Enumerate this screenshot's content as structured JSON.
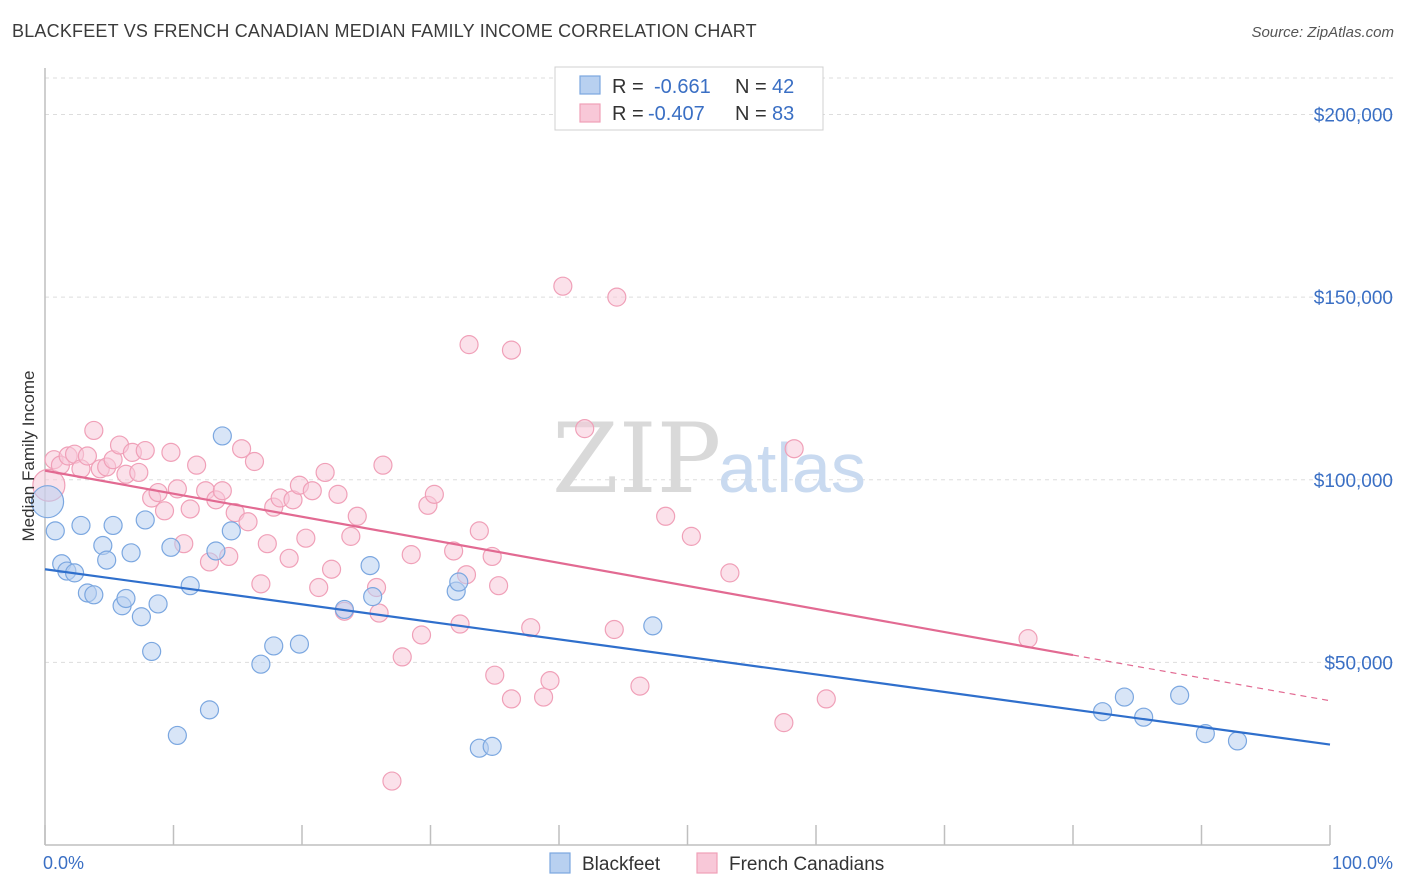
{
  "chart_data": {
    "type": "scatter",
    "title": "BLACKFEET VS FRENCH CANADIAN MEDIAN FAMILY INCOME CORRELATION CHART",
    "source": "Source: ZipAtlas.com",
    "xlabel": "",
    "ylabel": "Median Family Income",
    "xlim": [
      0,
      100
    ],
    "ylim": [
      0,
      210000
    ],
    "x_tick_labels": [
      "0.0%",
      "100.0%"
    ],
    "y_ticks": [
      {
        "value": 50000,
        "label": "$50,000"
      },
      {
        "value": 100000,
        "label": "$100,000"
      },
      {
        "value": 150000,
        "label": "$150,000"
      },
      {
        "value": 200000,
        "label": "$200,000"
      }
    ],
    "watermark": {
      "zip": "ZIP",
      "atlas": "atlas"
    },
    "legend": {
      "r_label": "R =",
      "n_label": "N =",
      "entries": [
        {
          "name": "Blackfeet",
          "r": "-0.661",
          "n": "42"
        },
        {
          "name": "French Canadians",
          "r": "-0.407",
          "n": "83"
        }
      ]
    },
    "series": [
      {
        "name": "Blackfeet",
        "color": "#7ba7e0",
        "fill": "#b8d0f0",
        "line_color": "#2f6fcc",
        "trend": {
          "x": [
            0,
            100
          ],
          "y": [
            75500,
            27500
          ]
        },
        "points": [
          [
            0.2,
            94000
          ],
          [
            0.8,
            86000
          ],
          [
            1.3,
            77000
          ],
          [
            1.7,
            75000
          ],
          [
            2.3,
            74500
          ],
          [
            2.8,
            87500
          ],
          [
            3.3,
            69000
          ],
          [
            3.8,
            68500
          ],
          [
            4.5,
            82000
          ],
          [
            4.8,
            78000
          ],
          [
            5.3,
            87500
          ],
          [
            6.0,
            65500
          ],
          [
            6.3,
            67500
          ],
          [
            6.7,
            80000
          ],
          [
            7.5,
            62500
          ],
          [
            7.8,
            89000
          ],
          [
            8.3,
            53000
          ],
          [
            8.8,
            66000
          ],
          [
            9.8,
            81500
          ],
          [
            10.3,
            30000
          ],
          [
            11.3,
            71000
          ],
          [
            12.8,
            37000
          ],
          [
            13.3,
            80500
          ],
          [
            13.8,
            112000
          ],
          [
            14.5,
            86000
          ],
          [
            16.8,
            49500
          ],
          [
            17.8,
            54500
          ],
          [
            19.8,
            55000
          ],
          [
            23.3,
            64500
          ],
          [
            25.3,
            76500
          ],
          [
            25.5,
            68000
          ],
          [
            32.0,
            69500
          ],
          [
            32.2,
            72000
          ],
          [
            33.8,
            26500
          ],
          [
            34.8,
            27000
          ],
          [
            47.3,
            60000
          ],
          [
            82.3,
            36500
          ],
          [
            84.0,
            40500
          ],
          [
            85.5,
            35000
          ],
          [
            88.3,
            41000
          ],
          [
            90.3,
            30500
          ],
          [
            92.8,
            28500
          ]
        ]
      },
      {
        "name": "French Canadians",
        "color": "#f0a0b8",
        "fill": "#f8c8d8",
        "line_color": "#e26a92",
        "trend": {
          "x": [
            0,
            80
          ],
          "y": [
            102500,
            52000
          ]
        },
        "trend_dashed": {
          "x": [
            80,
            100
          ],
          "y": [
            52000,
            39500
          ]
        },
        "points": [
          [
            0.3,
            98500
          ],
          [
            0.7,
            105500
          ],
          [
            1.2,
            104000
          ],
          [
            1.8,
            106500
          ],
          [
            2.3,
            107000
          ],
          [
            2.8,
            103000
          ],
          [
            3.3,
            106500
          ],
          [
            3.8,
            113500
          ],
          [
            4.3,
            103000
          ],
          [
            4.8,
            103500
          ],
          [
            5.3,
            105500
          ],
          [
            5.8,
            109500
          ],
          [
            6.3,
            101500
          ],
          [
            6.8,
            107500
          ],
          [
            7.3,
            102000
          ],
          [
            7.8,
            108000
          ],
          [
            8.3,
            95000
          ],
          [
            8.8,
            96500
          ],
          [
            9.3,
            91500
          ],
          [
            9.8,
            107500
          ],
          [
            10.3,
            97500
          ],
          [
            10.8,
            82500
          ],
          [
            11.3,
            92000
          ],
          [
            11.8,
            104000
          ],
          [
            12.5,
            97000
          ],
          [
            12.8,
            77500
          ],
          [
            13.3,
            94500
          ],
          [
            13.8,
            97000
          ],
          [
            14.3,
            79000
          ],
          [
            14.8,
            91000
          ],
          [
            15.3,
            108500
          ],
          [
            15.8,
            88500
          ],
          [
            16.3,
            105000
          ],
          [
            16.8,
            71500
          ],
          [
            17.3,
            82500
          ],
          [
            17.8,
            92500
          ],
          [
            18.3,
            95000
          ],
          [
            19.0,
            78500
          ],
          [
            19.3,
            94500
          ],
          [
            19.8,
            98500
          ],
          [
            20.3,
            84000
          ],
          [
            20.8,
            97000
          ],
          [
            21.3,
            70500
          ],
          [
            21.8,
            102000
          ],
          [
            22.3,
            75500
          ],
          [
            22.8,
            96000
          ],
          [
            23.3,
            64000
          ],
          [
            23.8,
            84500
          ],
          [
            24.3,
            90000
          ],
          [
            25.8,
            70500
          ],
          [
            26.0,
            63500
          ],
          [
            26.3,
            104000
          ],
          [
            27.8,
            51500
          ],
          [
            28.5,
            79500
          ],
          [
            29.3,
            57500
          ],
          [
            29.8,
            93000
          ],
          [
            30.3,
            96000
          ],
          [
            31.8,
            80500
          ],
          [
            32.3,
            60500
          ],
          [
            32.8,
            74000
          ],
          [
            33.0,
            137000
          ],
          [
            33.8,
            86000
          ],
          [
            34.8,
            79000
          ],
          [
            35.0,
            46500
          ],
          [
            35.3,
            71000
          ],
          [
            36.3,
            135500
          ],
          [
            36.3,
            40000
          ],
          [
            37.8,
            59500
          ],
          [
            38.8,
            40500
          ],
          [
            39.3,
            45000
          ],
          [
            40.3,
            153000
          ],
          [
            42.0,
            114000
          ],
          [
            44.3,
            59000
          ],
          [
            44.5,
            150000
          ],
          [
            46.3,
            43500
          ],
          [
            48.3,
            90000
          ],
          [
            50.3,
            84500
          ],
          [
            53.3,
            74500
          ],
          [
            57.5,
            33500
          ],
          [
            58.3,
            108500
          ],
          [
            60.8,
            40000
          ],
          [
            76.5,
            56500
          ],
          [
            27.0,
            17500
          ]
        ]
      }
    ]
  }
}
